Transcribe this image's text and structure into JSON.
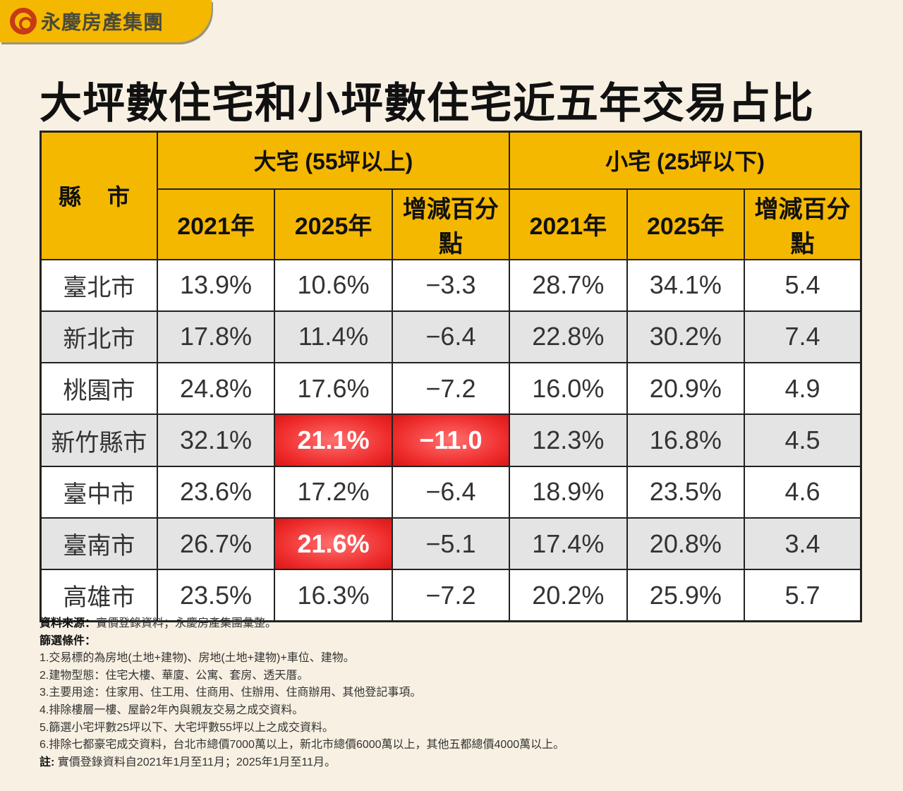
{
  "brand": {
    "name": "永慶房產集團",
    "accent": "#f5b800",
    "logo_color": "#c63a16"
  },
  "title": "大坪數住宅和小坪數住宅近五年交易占比",
  "table": {
    "city_header": "縣 市",
    "groups": [
      "大宅 (55坪以上)",
      "小宅 (25坪以下)"
    ],
    "sub_headers": [
      "2021年",
      "2025年",
      "增減百分點",
      "2021年",
      "2025年",
      "增減百分點"
    ],
    "highlight_color": "#ee2a2a",
    "rows": [
      {
        "city": "臺北市",
        "values": [
          "13.9%",
          "10.6%",
          "−3.3",
          "28.7%",
          "34.1%",
          "5.4"
        ],
        "highlight": []
      },
      {
        "city": "新北市",
        "values": [
          "17.8%",
          "11.4%",
          "−6.4",
          "22.8%",
          "30.2%",
          "7.4"
        ],
        "highlight": []
      },
      {
        "city": "桃園市",
        "values": [
          "24.8%",
          "17.6%",
          "−7.2",
          "16.0%",
          "20.9%",
          "4.9"
        ],
        "highlight": []
      },
      {
        "city": "新竹縣市",
        "values": [
          "32.1%",
          "21.1%",
          "−11.0",
          "12.3%",
          "16.8%",
          "4.5"
        ],
        "highlight": [
          1,
          2
        ]
      },
      {
        "city": "臺中市",
        "values": [
          "23.6%",
          "17.2%",
          "−6.4",
          "18.9%",
          "23.5%",
          "4.6"
        ],
        "highlight": []
      },
      {
        "city": "臺南市",
        "values": [
          "26.7%",
          "21.6%",
          "−5.1",
          "17.4%",
          "20.8%",
          "3.4"
        ],
        "highlight": [
          1
        ]
      },
      {
        "city": "高雄市",
        "values": [
          "23.5%",
          "16.3%",
          "−7.2",
          "20.2%",
          "25.9%",
          "5.7"
        ],
        "highlight": []
      }
    ]
  },
  "notes": {
    "source_label": "資料來源：",
    "source": "實價登錄資料；永慶房產集團彙整。",
    "criteria_label": "篩選條件：",
    "criteria": [
      "1.交易標的為房地(土地+建物)、房地(土地+建物)+車位、建物。",
      "2.建物型態：住宅大樓、華廈、公寓、套房、透天厝。",
      "3.主要用途：住家用、住工用、住商用、住辦用、住商辦用、其他登記事項。",
      "4.排除樓層一樓、屋齡2年內與親友交易之成交資料。",
      "5.篩選小宅坪數25坪以下、大宅坪數55坪以上之成交資料。",
      "6.排除七都豪宅成交資料，台北市總價7000萬以上，新北市總價6000萬以上，其他五都總價4000萬以上。"
    ],
    "note_label": "註:",
    "note": " 實價登錄資料自2021年1月至11月；2025年1月至11月。"
  }
}
